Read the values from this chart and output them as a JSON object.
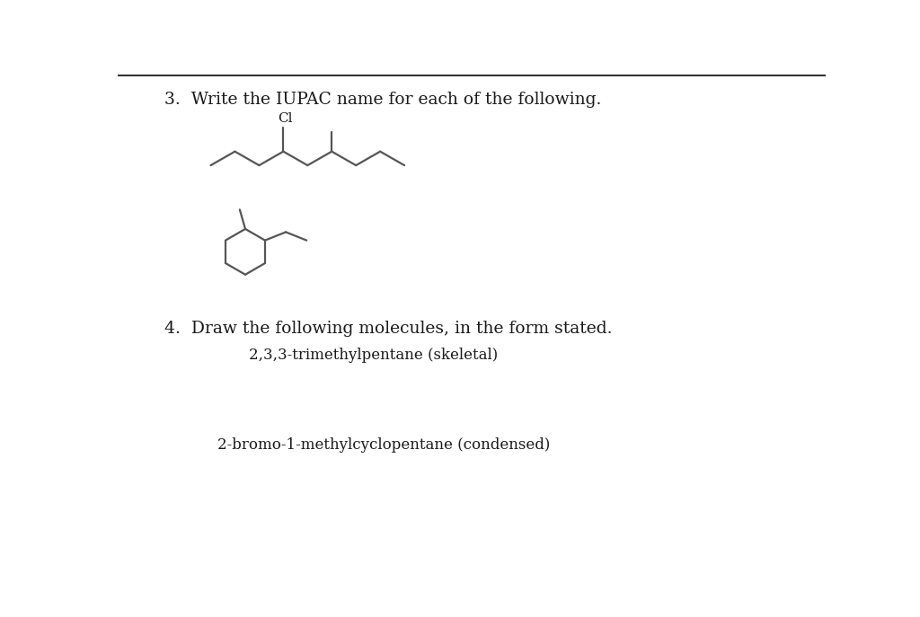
{
  "bg_color": "#ffffff",
  "text_color": "#1a1a1a",
  "line_color": "#555555",
  "title3": "3.  Write the IUPAC name for each of the following.",
  "title4": "4.  Draw the following molecules, in the form stated.",
  "molecule1_label": "2,3,3-trimethylpentane (skeletal)",
  "molecule2_label": "2-bromo-1-methylcyclopentane (condensed)",
  "cl_label": "Cl",
  "font_size_title": 13.5,
  "font_size_mol": 12,
  "font_size_cl": 11
}
